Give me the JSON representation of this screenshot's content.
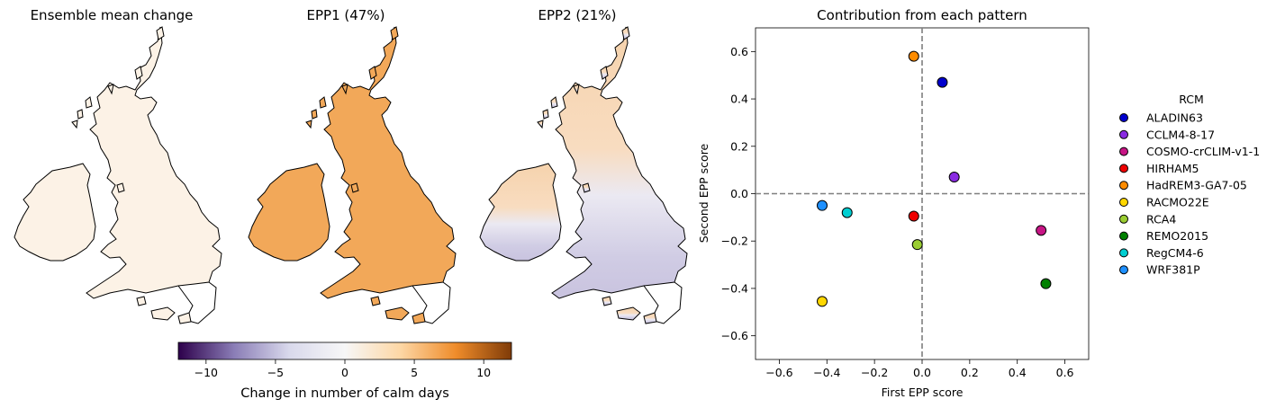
{
  "maps": [
    {
      "title": "Ensemble mean change",
      "fill": "#fcf2e6",
      "gradient": false
    },
    {
      "title": "EPP1 (47%)",
      "fill": "#f2a859",
      "gradient": false
    },
    {
      "title": "EPP2 (21%)",
      "fill": "#f6d3ad",
      "gradient": true
    }
  ],
  "colorbar": {
    "label": "Change in number of calm days",
    "min": -12,
    "max": 12,
    "ticks": [
      -10,
      -5,
      0,
      5,
      10
    ],
    "colors": [
      "#2d004b",
      "#8a7db6",
      "#d9d9ec",
      "#f7f7f7",
      "#fdd7a5",
      "#ef8c2a",
      "#7f3b08"
    ]
  },
  "chart_data": {
    "type": "scatter",
    "title": "Contribution from each pattern",
    "xlabel": "First EPP score",
    "ylabel": "Second EPP score",
    "xlim": [
      -0.7,
      0.7
    ],
    "ylim": [
      -0.7,
      0.7
    ],
    "xticks": [
      -0.6,
      -0.4,
      -0.2,
      0.0,
      0.2,
      0.4,
      0.6
    ],
    "yticks": [
      -0.6,
      -0.4,
      -0.2,
      0.0,
      0.2,
      0.4,
      0.6
    ],
    "reference_lines": {
      "x": 0.0,
      "y": 0.0,
      "style": "dashed",
      "color": "#7f7f7f"
    },
    "legend": {
      "title": "RCM",
      "placement": "right-outside"
    },
    "series": [
      {
        "name": "ALADIN63",
        "color": "#0000cd",
        "x": 0.085,
        "y": 0.47
      },
      {
        "name": "CCLM4-8-17",
        "color": "#8a2be2",
        "x": 0.135,
        "y": 0.07
      },
      {
        "name": "COSMO-crCLIM-v1-1",
        "color": "#c71585",
        "x": 0.5,
        "y": -0.155
      },
      {
        "name": "HIRHAM5",
        "color": "#ee0000",
        "x": -0.035,
        "y": -0.095
      },
      {
        "name": "HadREM3-GA7-05",
        "color": "#ff8c00",
        "x": -0.035,
        "y": 0.58
      },
      {
        "name": "RACMO22E",
        "color": "#ffd700",
        "x": -0.42,
        "y": -0.455
      },
      {
        "name": "RCA4",
        "color": "#9acd32",
        "x": -0.02,
        "y": -0.215
      },
      {
        "name": "REMO2015",
        "color": "#008000",
        "x": 0.52,
        "y": -0.38
      },
      {
        "name": "RegCM4-6",
        "color": "#00ced1",
        "x": -0.315,
        "y": -0.08
      },
      {
        "name": "WRF381P",
        "color": "#1e90ff",
        "x": -0.42,
        "y": -0.05
      }
    ]
  }
}
